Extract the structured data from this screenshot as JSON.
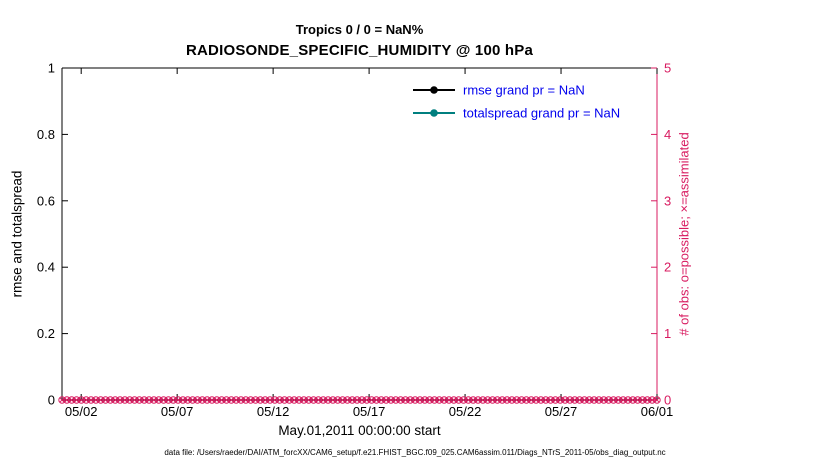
{
  "chart_data": {
    "type": "line",
    "title": "Tropics 0 / 0 = NaN%",
    "subtitle": "RADIOSONDE_SPECIFIC_HUMIDITY @ 100 hPa",
    "x_axis": {
      "label": "May.01,2011 00:00:00 start",
      "tick_labels": [
        "05/02",
        "05/07",
        "05/12",
        "05/17",
        "05/22",
        "05/27",
        "06/01"
      ],
      "tick_days": [
        1,
        6,
        11,
        16,
        21,
        26,
        31
      ],
      "range_days": [
        0,
        31
      ]
    },
    "left_axis": {
      "label": "rmse and totalspread",
      "ticks": [
        "0",
        "0.2",
        "0.4",
        "0.6",
        "0.8",
        "1"
      ],
      "tick_values": [
        0,
        0.2,
        0.4,
        0.6,
        0.8,
        1
      ],
      "range": [
        0,
        1
      ],
      "color": "#000000"
    },
    "right_axis": {
      "label": "# of obs: o=possible; ×=assimilated",
      "ticks": [
        "0",
        "1",
        "2",
        "3",
        "4",
        "5"
      ],
      "tick_values": [
        0,
        1,
        2,
        3,
        4,
        5
      ],
      "range": [
        0,
        5
      ],
      "color": "#d81b60"
    },
    "series": [
      {
        "name": "rmse grand pr = NaN",
        "color": "#000000",
        "grand_pr": "NaN",
        "values": []
      },
      {
        "name": "totalspread grand pr = NaN",
        "color": "#007f7f",
        "grand_pr": "NaN",
        "values": []
      }
    ],
    "observations": {
      "description": "row of overlapping o (possible) and x (assimilated) markers along y=0",
      "value": 0,
      "count": 124,
      "color": "#d81b60"
    },
    "legend": {
      "position": "upper-center-right inside plot",
      "text_color": "#0000ee",
      "entries": [
        "rmse grand pr = NaN",
        "totalspread grand pr = NaN"
      ]
    },
    "grid": false,
    "background": "#ffffff"
  },
  "footer": {
    "text": "data file: /Users/raeder/DAI/ATM_forcXX/CAM6_setup/f.e21.FHIST_BGC.f09_025.CAM6assim.011/Diags_NTrS_2011-05/obs_diag_output.nc"
  }
}
